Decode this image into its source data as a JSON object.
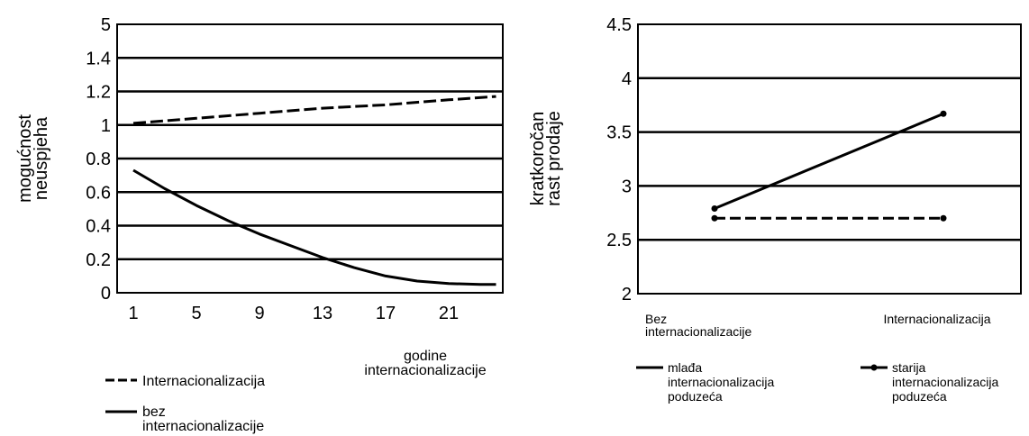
{
  "chart_data": [
    {
      "type": "line",
      "ylabel_lines": [
        "mogućnost",
        "neuspjeha"
      ],
      "xlabel_lines": [
        "godine",
        "internacionalizacije"
      ],
      "x_ticks": [
        "1",
        "5",
        "9",
        "13",
        "17",
        "21"
      ],
      "y_ticks": [
        "0",
        "0.2",
        "0.4",
        "0.6",
        "0.8",
        "1",
        "1.2",
        "1.4",
        "5"
      ],
      "series": [
        {
          "name": "Internacionalizacija",
          "style": "dashed",
          "x": [
            1,
            5,
            9,
            13,
            17,
            21,
            24
          ],
          "y": [
            1.01,
            1.04,
            1.07,
            1.1,
            1.12,
            1.15,
            1.17
          ]
        },
        {
          "name_lines": [
            "bez",
            "internacionalizacije"
          ],
          "style": "solid",
          "x": [
            1,
            3,
            5,
            7,
            9,
            11,
            13,
            15,
            17,
            19,
            21,
            23,
            24
          ],
          "y": [
            0.73,
            0.62,
            0.52,
            0.43,
            0.35,
            0.28,
            0.21,
            0.15,
            0.1,
            0.07,
            0.055,
            0.05,
            0.05
          ]
        }
      ]
    },
    {
      "type": "line",
      "ylabel_lines": [
        "kratkoročan",
        "rast prodaje"
      ],
      "y_ticks": [
        "2",
        "2.5",
        "3",
        "3.5",
        "4",
        "4.5"
      ],
      "ylim": [
        2,
        4.5
      ],
      "categories": [
        [
          "Bez",
          "internacionalizacije"
        ],
        [
          "Internacionalizacija"
        ]
      ],
      "series": [
        {
          "name_lines": [
            "mlađa",
            "internacionalizacija",
            "poduzeća"
          ],
          "style": "solid",
          "values": [
            2.79,
            3.67
          ]
        },
        {
          "name_lines": [
            "starija",
            "internacionalizacija",
            "poduzeća"
          ],
          "style": "dashed-markers",
          "values": [
            2.7,
            2.7
          ]
        }
      ]
    }
  ]
}
